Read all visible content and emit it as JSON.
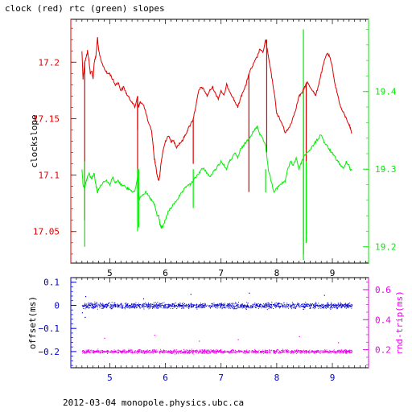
{
  "page": {
    "title": "clock (red) rtc (green) slopes",
    "footer": "2012-03-04 monopole.physics.ubc.ca"
  },
  "colors": {
    "clock": "#dd0000",
    "rtc": "#00ee00",
    "offset": "#0000cc",
    "roundtrip": "#ee00ee",
    "axis": "#000000"
  },
  "chart_data": [
    {
      "type": "line",
      "title": "clock (red) rtc (green) slopes",
      "xlabel": "",
      "ylabel": "clockslope",
      "y2label": "",
      "xlim": [
        4.3,
        9.65
      ],
      "ylim": [
        17.022,
        17.238
      ],
      "y2lim": [
        19.179,
        19.493
      ],
      "xticks": [
        5,
        6,
        7,
        8,
        9
      ],
      "yticks": [
        17.05,
        17.1,
        17.15,
        17.2
      ],
      "ytick_labels": [
        "17.05",
        "17.1",
        "17.15",
        "17.2"
      ],
      "y2ticks": [
        19.2,
        19.3,
        19.4
      ],
      "y2tick_labels": [
        "19.2",
        "19.3",
        "19.4"
      ],
      "grid": false,
      "series": [
        {
          "name": "clock",
          "axis": "left",
          "color": "#dd0000",
          "x": [
            4.5,
            4.52,
            4.55,
            4.58,
            4.6,
            4.63,
            4.65,
            4.68,
            4.7,
            4.72,
            4.75,
            4.78,
            4.8,
            4.85,
            4.9,
            4.95,
            5.0,
            5.05,
            5.1,
            5.15,
            5.2,
            5.25,
            5.3,
            5.35,
            5.4,
            5.45,
            5.5,
            5.5,
            5.52,
            5.55,
            5.6,
            5.65,
            5.7,
            5.75,
            5.8,
            5.82,
            5.85,
            5.88,
            5.9,
            5.92,
            5.95,
            6.0,
            6.05,
            6.1,
            6.15,
            6.2,
            6.25,
            6.3,
            6.35,
            6.4,
            6.45,
            6.5,
            6.55,
            6.6,
            6.65,
            6.7,
            6.75,
            6.8,
            6.85,
            6.9,
            6.95,
            7.0,
            7.05,
            7.1,
            7.15,
            7.2,
            7.25,
            7.3,
            7.35,
            7.4,
            7.45,
            7.5,
            7.55,
            7.6,
            7.65,
            7.7,
            7.75,
            7.8,
            7.85,
            7.9,
            7.95,
            8.0,
            8.05,
            8.1,
            8.15,
            8.2,
            8.25,
            8.3,
            8.35,
            8.4,
            8.45,
            8.5,
            8.55,
            8.6,
            8.65,
            8.7,
            8.75,
            8.8,
            8.85,
            8.9,
            8.95,
            9.0,
            9.05,
            9.1,
            9.15,
            9.2,
            9.25,
            9.3,
            9.32,
            9.35
          ],
          "y": [
            17.21,
            17.185,
            17.2,
            17.205,
            17.21,
            17.2,
            17.19,
            17.192,
            17.185,
            17.2,
            17.205,
            17.222,
            17.21,
            17.2,
            17.195,
            17.19,
            17.19,
            17.185,
            17.18,
            17.182,
            17.175,
            17.178,
            17.172,
            17.168,
            17.165,
            17.16,
            17.17,
            17.165,
            17.16,
            17.165,
            17.163,
            17.155,
            17.145,
            17.14,
            17.115,
            17.11,
            17.1,
            17.095,
            17.1,
            17.11,
            17.12,
            17.13,
            17.135,
            17.13,
            17.13,
            17.125,
            17.128,
            17.13,
            17.135,
            17.14,
            17.145,
            17.15,
            17.162,
            17.175,
            17.178,
            17.175,
            17.17,
            17.175,
            17.178,
            17.172,
            17.168,
            17.175,
            17.17,
            17.18,
            17.175,
            17.17,
            17.165,
            17.16,
            17.168,
            17.175,
            17.18,
            17.19,
            17.195,
            17.2,
            17.205,
            17.212,
            17.208,
            17.22,
            17.205,
            17.19,
            17.175,
            17.155,
            17.15,
            17.145,
            17.138,
            17.14,
            17.145,
            17.152,
            17.16,
            17.17,
            17.172,
            17.178,
            17.182,
            17.178,
            17.175,
            17.17,
            17.18,
            17.19,
            17.2,
            17.208,
            17.205,
            17.195,
            17.18,
            17.17,
            17.16,
            17.155,
            17.15,
            17.145,
            17.142,
            17.137
          ]
        },
        {
          "name": "rtc",
          "axis": "right",
          "color": "#00ee00",
          "x": [
            4.5,
            4.52,
            4.55,
            4.58,
            4.6,
            4.63,
            4.65,
            4.68,
            4.7,
            4.72,
            4.75,
            4.78,
            4.8,
            4.85,
            4.9,
            4.95,
            5.0,
            5.05,
            5.1,
            5.15,
            5.2,
            5.25,
            5.3,
            5.35,
            5.4,
            5.45,
            5.5,
            5.5,
            5.52,
            5.55,
            5.6,
            5.65,
            5.7,
            5.75,
            5.8,
            5.82,
            5.85,
            5.88,
            5.9,
            5.92,
            5.95,
            6.0,
            6.05,
            6.1,
            6.15,
            6.2,
            6.25,
            6.3,
            6.35,
            6.4,
            6.45,
            6.5,
            6.55,
            6.6,
            6.65,
            6.7,
            6.75,
            6.8,
            6.85,
            6.9,
            6.95,
            7.0,
            7.05,
            7.1,
            7.15,
            7.2,
            7.25,
            7.3,
            7.35,
            7.4,
            7.45,
            7.5,
            7.55,
            7.6,
            7.65,
            7.7,
            7.75,
            7.8,
            7.85,
            7.9,
            7.95,
            8.0,
            8.05,
            8.1,
            8.15,
            8.2,
            8.25,
            8.3,
            8.35,
            8.4,
            8.45,
            8.5,
            8.55,
            8.6,
            8.65,
            8.7,
            8.75,
            8.8,
            8.85,
            8.9,
            8.95,
            9.0,
            9.05,
            9.1,
            9.15,
            9.2,
            9.25,
            9.3,
            9.32,
            9.35
          ],
          "y": [
            19.3,
            19.28,
            19.275,
            19.285,
            19.29,
            19.295,
            19.29,
            19.288,
            19.292,
            19.295,
            19.28,
            19.27,
            19.275,
            19.28,
            19.285,
            19.285,
            19.28,
            19.29,
            19.282,
            19.285,
            19.28,
            19.28,
            19.275,
            19.275,
            19.272,
            19.27,
            19.29,
            19.27,
            19.26,
            19.265,
            19.268,
            19.27,
            19.265,
            19.26,
            19.255,
            19.25,
            19.24,
            19.24,
            19.23,
            19.225,
            19.225,
            19.235,
            19.245,
            19.25,
            19.255,
            19.26,
            19.265,
            19.27,
            19.275,
            19.28,
            19.28,
            19.285,
            19.29,
            19.295,
            19.3,
            19.3,
            19.295,
            19.29,
            19.295,
            19.3,
            19.305,
            19.31,
            19.305,
            19.3,
            19.31,
            19.315,
            19.32,
            19.315,
            19.325,
            19.33,
            19.335,
            19.34,
            19.345,
            19.35,
            19.355,
            19.345,
            19.34,
            19.33,
            19.3,
            19.285,
            19.27,
            19.275,
            19.28,
            19.282,
            19.285,
            19.3,
            19.31,
            19.305,
            19.315,
            19.3,
            19.31,
            19.318,
            19.322,
            19.325,
            19.33,
            19.335,
            19.34,
            19.345,
            19.335,
            19.33,
            19.325,
            19.32,
            19.315,
            19.31,
            19.305,
            19.3,
            19.31,
            19.305,
            19.3,
            19.298
          ]
        }
      ],
      "annotations": [
        {
          "text": "spikes",
          "series": "clock",
          "x": [
            4.55,
            5.5,
            5.5,
            6.5,
            7.5,
            7.82,
            8.48,
            8.53
          ],
          "y_low": [
            17.06,
            17.14,
            17.088,
            17.11,
            17.085,
            17.12,
            17.03,
            17.04
          ]
        },
        {
          "text": "spikes",
          "series": "rtc",
          "x": [
            4.55,
            5.5,
            5.52,
            6.5,
            7.8,
            8.48,
            8.53
          ],
          "y_low": [
            19.2,
            19.22,
            19.225,
            19.25,
            19.27,
            19.183,
            19.205
          ],
          "y_high": [
            19.31,
            19.3,
            19.3,
            19.3,
            19.3,
            19.48,
            19.31
          ]
        }
      ]
    },
    {
      "type": "scatter",
      "title": "",
      "xlabel": "",
      "ylabel": "offset(ms)",
      "y2label": "rnd-trip(ms)",
      "xlim": [
        4.3,
        9.65
      ],
      "ylim": [
        -0.27,
        0.12
      ],
      "y2lim": [
        0.08,
        0.68
      ],
      "xticks": [
        5,
        6,
        7,
        8,
        9
      ],
      "yticks": [
        0.1,
        0,
        -0.1,
        -0.2
      ],
      "ytick_labels": [
        "0.1",
        "0",
        "−0.1",
        "−0.2"
      ],
      "y2ticks": [
        0.2,
        0.4,
        0.6
      ],
      "y2tick_labels": [
        "0.2",
        "0.4",
        "0.6"
      ],
      "grid": false,
      "series": [
        {
          "name": "offset",
          "axis": "left",
          "color": "#0000cc",
          "x_range": [
            4.5,
            9.35
          ],
          "center": 0.0,
          "spread": 0.012,
          "outliers": [
            [
              4.55,
              -0.05
            ],
            [
              4.56,
              0.04
            ],
            [
              5.6,
              0.03
            ],
            [
              6.45,
              0.05
            ],
            [
              7.5,
              0.055
            ],
            [
              8.85,
              0.045
            ],
            [
              4.5,
              -0.03
            ]
          ]
        },
        {
          "name": "roundtrip",
          "axis": "right",
          "color": "#ee00ee",
          "x_range": [
            4.5,
            9.35
          ],
          "center": 0.19,
          "spread": 0.012,
          "outliers": [
            [
              4.9,
              0.28
            ],
            [
              5.8,
              0.3
            ],
            [
              6.6,
              0.26
            ],
            [
              7.3,
              0.27
            ],
            [
              8.4,
              0.29
            ],
            [
              9.1,
              0.25
            ]
          ]
        }
      ]
    }
  ]
}
